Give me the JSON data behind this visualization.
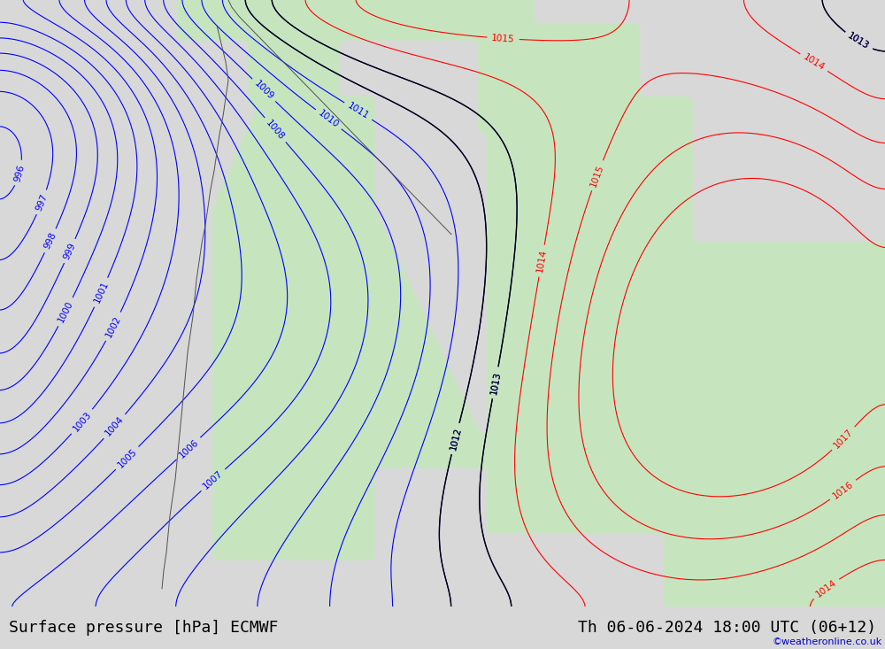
{
  "title_left": "Surface pressure [hPa] ECMWF",
  "title_right": "Th 06-06-2024 18:00 UTC (06+12)",
  "watermark": "©weatheronline.co.uk",
  "bg_color": "#d8d8d8",
  "map_bg_color": "#d8d8d8",
  "land_color": "#c8e6c0",
  "sea_color": "#d8d8d8",
  "isobar_color_blue": "#0000ff",
  "isobar_color_red": "#ff0000",
  "isobar_color_black": "#000000",
  "bottom_bar_color": "#e8e8e8",
  "title_fontsize": 13,
  "label_fontsize": 8,
  "pressure_min": 993,
  "pressure_max": 1018,
  "figsize": [
    10.0,
    7.33
  ]
}
